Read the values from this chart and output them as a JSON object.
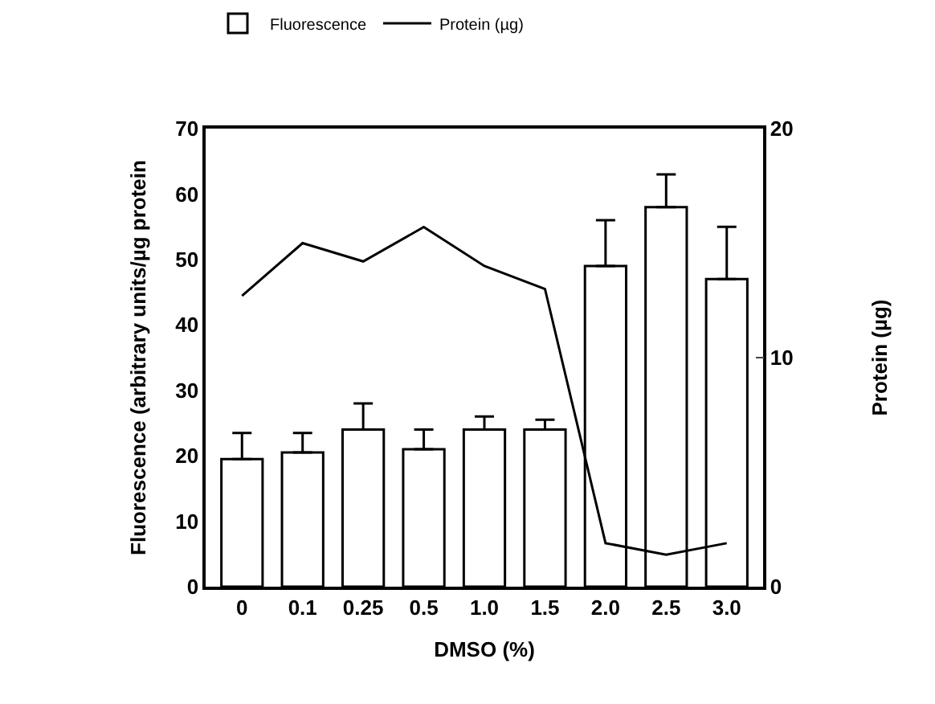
{
  "chart_data": {
    "type": "bar",
    "xlabel": "DMSO (%)",
    "ylabel": "Fluorescence (arbitrary units/µg protein",
    "y2label": "Protein (µg)",
    "categories": [
      "0",
      "0.1",
      "0.25",
      "0.5",
      "1.0",
      "1.5",
      "2.0",
      "2.5",
      "3.0"
    ],
    "series": [
      {
        "name": "Fluorescence",
        "color": "#ffffff",
        "values": [
          19.5,
          20.5,
          24,
          21,
          24,
          24,
          49,
          58,
          47
        ],
        "errors": [
          [
            19.5,
            23.5
          ],
          [
            20.5,
            23.5
          ],
          [
            24,
            28
          ],
          [
            21,
            24
          ],
          [
            24,
            26
          ],
          [
            24,
            25.5
          ],
          [
            49,
            56
          ],
          [
            58,
            63
          ],
          [
            47,
            55
          ]
        ]
      },
      {
        "name": "Protein (µg)",
        "type": "line",
        "axis": "y2",
        "color": "#000000",
        "values": [
          12.7,
          15.0,
          14.2,
          15.7,
          14.0,
          13.0,
          1.9,
          1.4,
          1.9
        ]
      }
    ],
    "ylim": [
      0,
      70
    ],
    "yticks": [
      0,
      10,
      20,
      30,
      40,
      50,
      60,
      70
    ],
    "y2lim": [
      0,
      20
    ],
    "y2ticks": [
      0,
      10,
      20
    ],
    "legend": "top",
    "marker": "none"
  }
}
